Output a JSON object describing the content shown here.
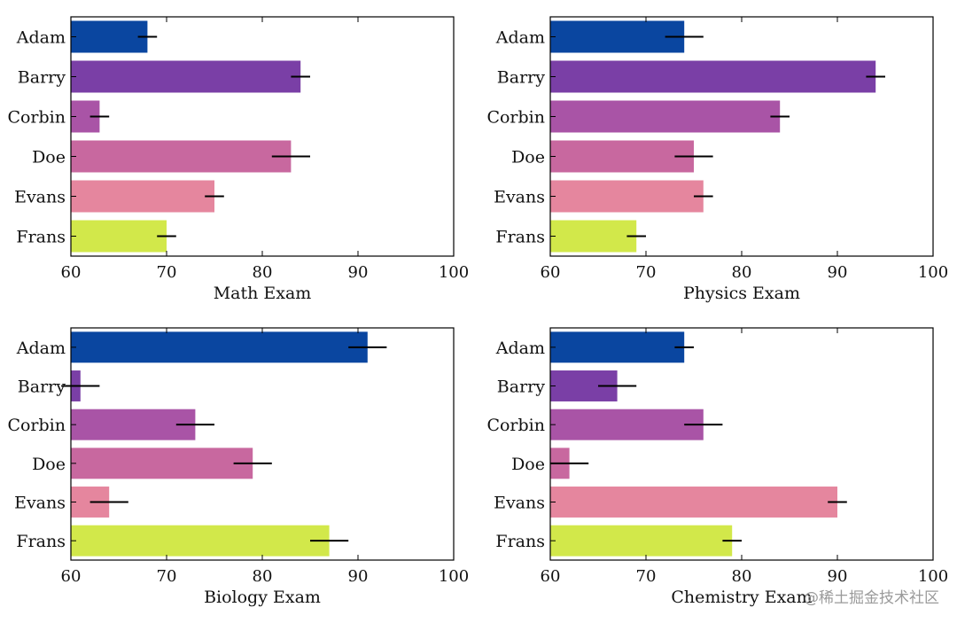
{
  "colors": [
    "#0a46a0",
    "#7a3fa6",
    "#a954a6",
    "#c8689f",
    "#e5869e",
    "#d2e84a"
  ],
  "watermark": "@稀土掘金技术社区",
  "chart_data": [
    {
      "type": "bar",
      "orientation": "horizontal",
      "xlabel": "Math Exam",
      "categories": [
        "Adam",
        "Barry",
        "Corbin",
        "Doe",
        "Evans",
        "Frans"
      ],
      "values": [
        68,
        84,
        63,
        83,
        75,
        70
      ],
      "errors": [
        1,
        1,
        1,
        2,
        1,
        1
      ],
      "xlim": [
        60,
        100
      ],
      "xticks": [
        60,
        70,
        80,
        90,
        100
      ]
    },
    {
      "type": "bar",
      "orientation": "horizontal",
      "xlabel": "Physics Exam",
      "categories": [
        "Adam",
        "Barry",
        "Corbin",
        "Doe",
        "Evans",
        "Frans"
      ],
      "values": [
        74,
        94,
        84,
        75,
        76,
        69
      ],
      "errors": [
        2,
        1,
        1,
        2,
        1,
        1
      ],
      "xlim": [
        60,
        100
      ],
      "xticks": [
        60,
        70,
        80,
        90,
        100
      ]
    },
    {
      "type": "bar",
      "orientation": "horizontal",
      "xlabel": "Biology Exam",
      "categories": [
        "Adam",
        "Barry",
        "Corbin",
        "Doe",
        "Evans",
        "Frans"
      ],
      "values": [
        91,
        61,
        73,
        79,
        64,
        87
      ],
      "errors": [
        2,
        2,
        2,
        2,
        2,
        2
      ],
      "xlim": [
        60,
        100
      ],
      "xticks": [
        60,
        70,
        80,
        90,
        100
      ]
    },
    {
      "type": "bar",
      "orientation": "horizontal",
      "xlabel": "Chemistry Exam",
      "categories": [
        "Adam",
        "Barry",
        "Corbin",
        "Doe",
        "Evans",
        "Frans"
      ],
      "values": [
        74,
        67,
        76,
        62,
        90,
        79
      ],
      "errors": [
        1,
        2,
        2,
        2,
        1,
        1
      ],
      "xlim": [
        60,
        100
      ],
      "xticks": [
        60,
        70,
        80,
        90,
        100
      ]
    }
  ]
}
